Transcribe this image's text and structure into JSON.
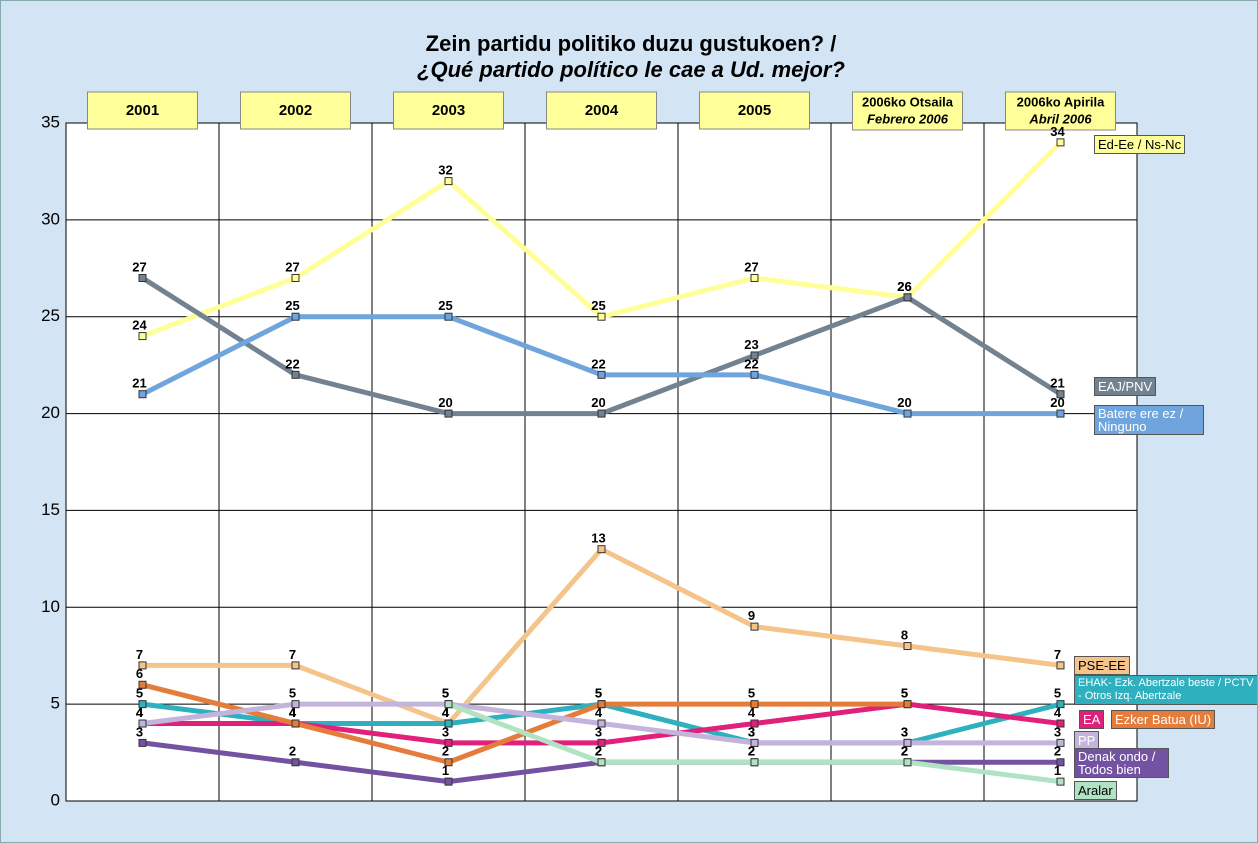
{
  "chart_data": {
    "type": "line",
    "title": "Zein partidu politiko duzu gustukoen? /",
    "subtitle": "¿Qué partido político le cae a Ud. mejor?",
    "categories": [
      "2001",
      "2002",
      "2003",
      "2004",
      "2005",
      [
        "2006ko Otsaila",
        "Febrero 2006"
      ],
      [
        "2006ko Apirila",
        "Abril 2006"
      ]
    ],
    "ylim": [
      0,
      35
    ],
    "yticks": [
      0,
      5,
      10,
      15,
      20,
      25,
      30,
      35
    ],
    "grid": true,
    "series": [
      {
        "name": "Ed-Ee / Ns-Nc",
        "color": "#ffff99",
        "values": [
          24,
          27,
          32,
          25,
          27,
          26,
          34
        ]
      },
      {
        "name": "EAJ/PNV",
        "color": "#738290",
        "values": [
          27,
          22,
          20,
          20,
          23,
          26,
          21
        ]
      },
      {
        "name": "Batere ere ez / Ninguno",
        "color": "#6fa5dc",
        "values": [
          21,
          25,
          25,
          22,
          22,
          20,
          20
        ]
      },
      {
        "name": "PSE-EE",
        "color": "#f5c48a",
        "values": [
          7,
          7,
          4,
          13,
          9,
          8,
          7
        ]
      },
      {
        "name": "EHAK- Ezk. Abertzale beste / PCTV - Otros Izq. Abertzale",
        "color": "#2eb0be",
        "values": [
          5,
          4,
          4,
          5,
          3,
          3,
          5
        ]
      },
      {
        "name": "EA",
        "color": "#e0207a",
        "values": [
          4,
          4,
          3,
          3,
          4,
          5,
          4
        ]
      },
      {
        "name": "Ezker Batua (IU)",
        "color": "#e47c3c",
        "values": [
          6,
          4,
          2,
          5,
          5,
          5,
          null
        ]
      },
      {
        "name": "PP",
        "color": "#c3b4dc",
        "values": [
          4,
          5,
          5,
          4,
          3,
          3,
          3
        ]
      },
      {
        "name": "Denak ondo / Todos bien",
        "color": "#7452a2",
        "values": [
          3,
          2,
          1,
          2,
          2,
          2,
          2
        ]
      },
      {
        "name": "Aralar",
        "color": "#b2e2c4",
        "values": [
          null,
          null,
          5,
          2,
          2,
          2,
          1
        ]
      }
    ]
  }
}
